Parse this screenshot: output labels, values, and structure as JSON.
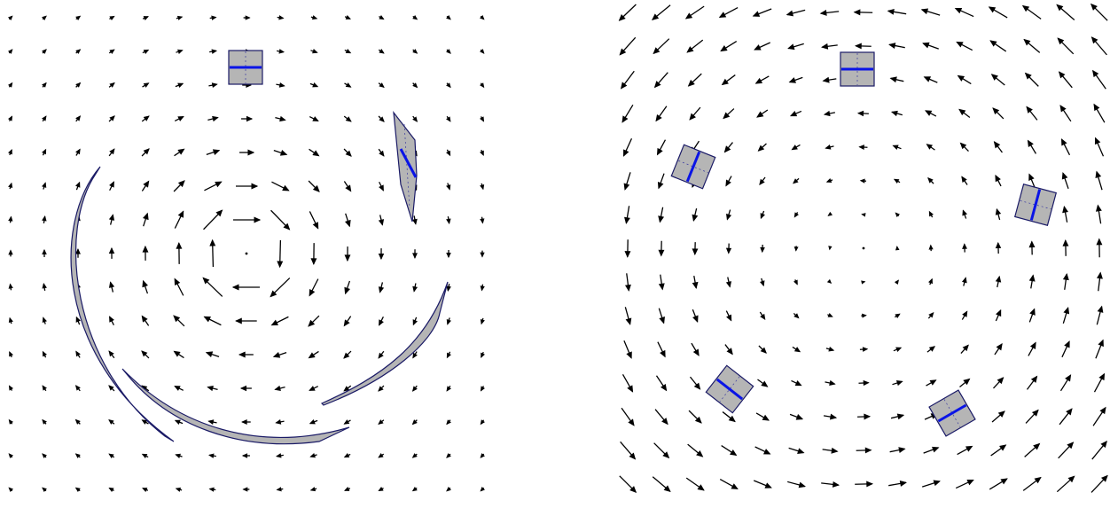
{
  "colors": {
    "background": "#ffffff",
    "arrow": "#000000",
    "body_fill": "#b5b5b5",
    "body_outline": "#1a1a66",
    "centerline": "#0a14e6"
  },
  "panels": [
    {
      "id": "left",
      "field": "point-vortex",
      "description_icon": "velocity-arrow-icon",
      "bodies": [
        {
          "kind": "square-plate"
        },
        {
          "kind": "elongated-plate"
        },
        {
          "kind": "arc-plate"
        },
        {
          "kind": "arc-plate"
        },
        {
          "kind": "arc-plate"
        }
      ]
    },
    {
      "id": "right",
      "field": "solid-body-rotation",
      "description_icon": "velocity-arrow-icon",
      "bodies": [
        {
          "kind": "square-plate"
        },
        {
          "kind": "square-plate"
        },
        {
          "kind": "square-plate"
        },
        {
          "kind": "square-plate"
        },
        {
          "kind": "square-plate"
        }
      ]
    }
  ]
}
